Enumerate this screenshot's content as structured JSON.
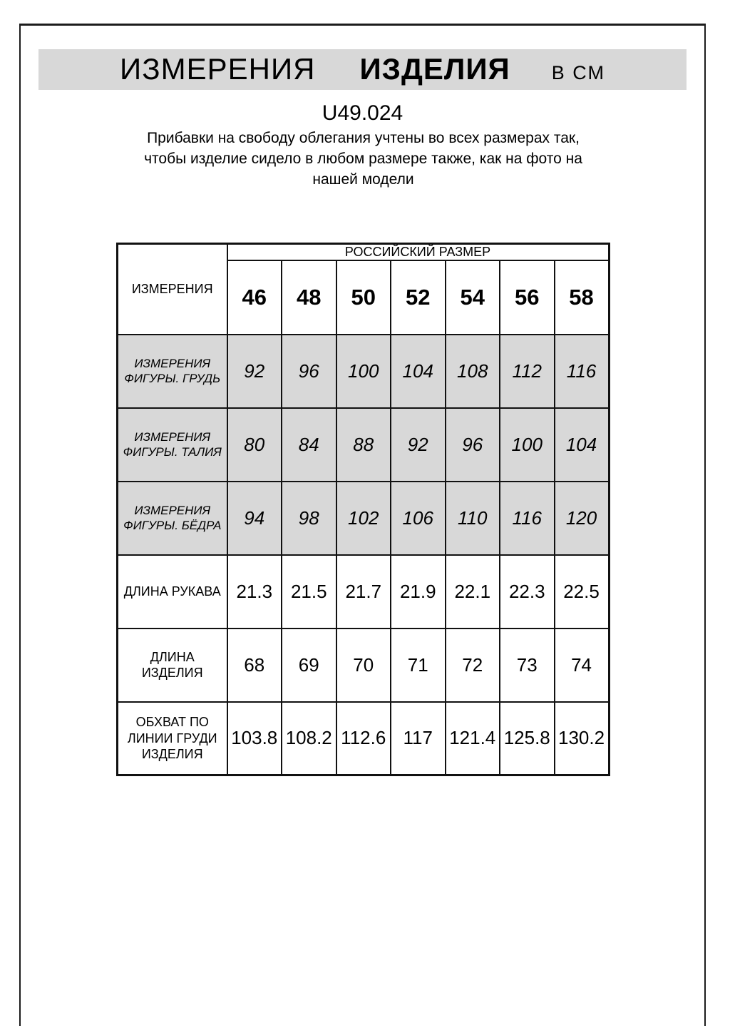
{
  "header": {
    "title_part1": "ИЗМЕРЕНИЯ",
    "title_part2": "ИЗДЕЛИЯ",
    "title_unit": "В СМ",
    "model_code": "U49.024",
    "description": "Прибавки на свободу облегания учтены во всех размерах так, чтобы изделие сидело в любом размере также, как на фото на нашей модели"
  },
  "table": {
    "corner_label": "ИЗМЕРЕНИЯ",
    "group_header": "РОССИЙСКИЙ РАЗМЕР",
    "sizes": [
      "46",
      "48",
      "50",
      "52",
      "54",
      "56",
      "58"
    ],
    "rows": [
      {
        "label": "ИЗМЕРЕНИЯ\nФИГУРЫ. ГРУДЬ",
        "values": [
          "92",
          "96",
          "100",
          "104",
          "108",
          "112",
          "116"
        ]
      },
      {
        "label": "ИЗМЕРЕНИЯ\nФИГУРЫ. ТАЛИЯ",
        "values": [
          "80",
          "84",
          "88",
          "92",
          "96",
          "100",
          "104"
        ]
      },
      {
        "label": "ИЗМЕРЕНИЯ\nФИГУРЫ. БЁДРА",
        "values": [
          "94",
          "98",
          "102",
          "106",
          "110",
          "116",
          "120"
        ]
      },
      {
        "label": "ДЛИНА РУКАВА",
        "values": [
          "21.3",
          "21.5",
          "21.7",
          "21.9",
          "22.1",
          "22.3",
          "22.5"
        ]
      },
      {
        "label": "ДЛИНА ИЗДЕЛИЯ",
        "values": [
          "68",
          "69",
          "70",
          "71",
          "72",
          "73",
          "74"
        ]
      },
      {
        "label": "ОБХВАТ ПО\nЛИНИИ ГРУДИ\nИЗДЕЛИЯ",
        "values": [
          "103.8",
          "108.2",
          "112.6",
          "117",
          "121.4",
          "125.8",
          "130.2"
        ]
      }
    ]
  },
  "colors": {
    "banner_bg": "#d8d8d8",
    "highlight_row_bg": "#d8d8d8",
    "border": "#111111",
    "text": "#000000"
  }
}
